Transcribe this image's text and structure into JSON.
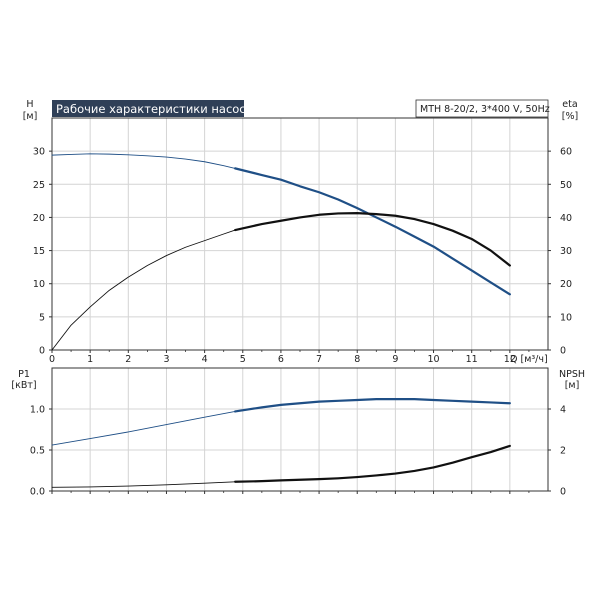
{
  "colors": {
    "frame": "#333333",
    "axis_text": "#222222",
    "title_bg": "#2f3f57",
    "title_fg": "#ffffff",
    "blue": "#1f4f86",
    "black": "#111111"
  },
  "chart_data": [
    {
      "type": "line",
      "title": "Рабочие характеристики насоса",
      "model_label": "MTH 8-20/2, 3*400 V, 50Hz",
      "xlabel": "Q [м³/ч]",
      "xlim": [
        0,
        13
      ],
      "x_ticks": [
        "0",
        "1",
        "2",
        "3",
        "4",
        "5",
        "6",
        "7",
        "8",
        "9",
        "10",
        "11",
        "12"
      ],
      "y_left": {
        "label": [
          "H",
          "[м]"
        ],
        "lim": [
          0,
          35
        ],
        "ticks": [
          "0",
          "5",
          "10",
          "15",
          "20",
          "25",
          "30"
        ]
      },
      "y_right": {
        "label": [
          "eta",
          "[%]"
        ],
        "lim": [
          0,
          70
        ],
        "ticks": [
          "0",
          "10",
          "20",
          "30",
          "40",
          "50",
          "60"
        ]
      },
      "grid": true,
      "series": [
        {
          "axis": "left",
          "color": "blue",
          "style": "thin",
          "points": [
            [
              0,
              29.4
            ],
            [
              0.5,
              29.5
            ],
            [
              1,
              29.6
            ],
            [
              1.5,
              29.55
            ],
            [
              2,
              29.45
            ],
            [
              2.5,
              29.3
            ],
            [
              3,
              29.1
            ],
            [
              3.5,
              28.8
            ],
            [
              4,
              28.4
            ],
            [
              4.5,
              27.8
            ],
            [
              4.8,
              27.4
            ]
          ]
        },
        {
          "axis": "left",
          "color": "blue",
          "style": "bold",
          "points": [
            [
              4.8,
              27.4
            ],
            [
              5.5,
              26.4
            ],
            [
              6,
              25.7
            ],
            [
              6.5,
              24.7
            ],
            [
              7,
              23.8
            ],
            [
              7.5,
              22.7
            ],
            [
              8,
              21.4
            ],
            [
              8.5,
              20.0
            ],
            [
              9,
              18.6
            ],
            [
              9.5,
              17.1
            ],
            [
              10,
              15.6
            ],
            [
              10.5,
              13.8
            ],
            [
              11,
              12.0
            ],
            [
              11.5,
              10.2
            ],
            [
              12,
              8.4
            ]
          ]
        },
        {
          "axis": "right",
          "color": "black",
          "style": "thin",
          "points": [
            [
              0,
              0
            ],
            [
              0.5,
              7.5
            ],
            [
              1,
              13.0
            ],
            [
              1.5,
              18.0
            ],
            [
              2,
              22.0
            ],
            [
              2.5,
              25.5
            ],
            [
              3,
              28.5
            ],
            [
              3.5,
              31.0
            ],
            [
              4,
              33.0
            ],
            [
              4.5,
              35.0
            ],
            [
              4.8,
              36.2
            ]
          ]
        },
        {
          "axis": "right",
          "color": "black",
          "style": "bold",
          "points": [
            [
              4.8,
              36.2
            ],
            [
              5.5,
              38.0
            ],
            [
              6,
              39.0
            ],
            [
              6.5,
              40.0
            ],
            [
              7,
              40.8
            ],
            [
              7.5,
              41.2
            ],
            [
              8,
              41.3
            ],
            [
              8.5,
              41.0
            ],
            [
              9,
              40.5
            ],
            [
              9.5,
              39.5
            ],
            [
              10,
              38.0
            ],
            [
              10.5,
              36.0
            ],
            [
              11,
              33.5
            ],
            [
              11.5,
              30.0
            ],
            [
              12,
              25.5
            ]
          ]
        }
      ]
    },
    {
      "type": "line",
      "xlim": [
        0,
        13
      ],
      "x_ticks": [
        "0",
        "1",
        "2",
        "3",
        "4",
        "5",
        "6",
        "7",
        "8",
        "9",
        "10",
        "11",
        "12"
      ],
      "y_left": {
        "label": [
          "P1",
          "[кВт]"
        ],
        "lim": [
          0,
          1.5
        ],
        "ticks": [
          "0.0",
          "0.5",
          "1.0"
        ]
      },
      "y_right": {
        "label": [
          "NPSH",
          "[м]"
        ],
        "lim": [
          0,
          6
        ],
        "ticks": [
          "0",
          "2",
          "4"
        ]
      },
      "grid": true,
      "series": [
        {
          "axis": "left",
          "color": "blue",
          "style": "thin",
          "points": [
            [
              0,
              0.56
            ],
            [
              1,
              0.64
            ],
            [
              2,
              0.72
            ],
            [
              3,
              0.81
            ],
            [
              4,
              0.9
            ],
            [
              4.8,
              0.97
            ]
          ]
        },
        {
          "axis": "left",
          "color": "blue",
          "style": "bold",
          "points": [
            [
              4.8,
              0.97
            ],
            [
              5.5,
              1.02
            ],
            [
              6,
              1.05
            ],
            [
              6.5,
              1.07
            ],
            [
              7,
              1.09
            ],
            [
              7.5,
              1.1
            ],
            [
              8,
              1.11
            ],
            [
              8.5,
              1.12
            ],
            [
              9,
              1.12
            ],
            [
              9.5,
              1.12
            ],
            [
              10,
              1.11
            ],
            [
              10.5,
              1.1
            ],
            [
              11,
              1.09
            ],
            [
              11.5,
              1.08
            ],
            [
              12,
              1.07
            ]
          ]
        },
        {
          "axis": "right",
          "color": "black",
          "style": "thin",
          "points": [
            [
              0,
              0.18
            ],
            [
              1,
              0.2
            ],
            [
              2,
              0.24
            ],
            [
              3,
              0.3
            ],
            [
              4,
              0.38
            ],
            [
              4.8,
              0.45
            ]
          ]
        },
        {
          "axis": "right",
          "color": "black",
          "style": "bold",
          "points": [
            [
              4.8,
              0.45
            ],
            [
              5.5,
              0.48
            ],
            [
              6,
              0.52
            ],
            [
              6.5,
              0.55
            ],
            [
              7,
              0.58
            ],
            [
              7.5,
              0.62
            ],
            [
              8,
              0.68
            ],
            [
              8.5,
              0.76
            ],
            [
              9,
              0.85
            ],
            [
              9.5,
              0.98
            ],
            [
              10,
              1.15
            ],
            [
              10.5,
              1.38
            ],
            [
              11,
              1.65
            ],
            [
              11.5,
              1.9
            ],
            [
              12,
              2.2
            ]
          ]
        }
      ]
    }
  ]
}
